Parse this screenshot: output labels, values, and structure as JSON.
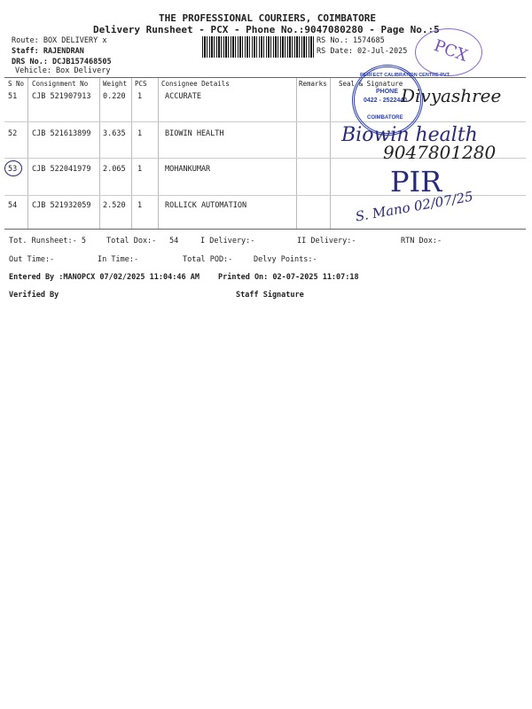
{
  "header": {
    "company": "THE PROFESSIONAL COURIERS, COIMBATORE",
    "subtitle": "Delivery Runsheet - PCX - Phone No.:9047080280 - Page No.:5",
    "route": "Route: BOX DELIVERY x",
    "staff": "Staff: RAJENDRAN",
    "drs": "DRS No.: DCJB157468505",
    "vehicle": "Vehicle: Box Delivery",
    "rs_no": "RS No.: 1574685",
    "rs_date": "RS Date: 02-Jul-2025"
  },
  "table": {
    "columns": [
      "S No",
      "Consignment No",
      "Weight",
      "PCS",
      "Consignee Details",
      "Remarks",
      "Seal & Signature"
    ],
    "rows": [
      {
        "sno": "51",
        "consignment": "CJB 521907913",
        "weight": "0.220",
        "pcs": "1",
        "consignee": "ACCURATE"
      },
      {
        "sno": "52",
        "consignment": "CJB 521613899",
        "weight": "3.635",
        "pcs": "1",
        "consignee": "BIOWIN HEALTH"
      },
      {
        "sno": "53",
        "consignment": "CJB 522041979",
        "weight": "2.065",
        "pcs": "1",
        "consignee": "MOHANKUMAR"
      },
      {
        "sno": "54",
        "consignment": "CJB 521932059",
        "weight": "2.520",
        "pcs": "1",
        "consignee": "ROLLICK AUTOMATION"
      }
    ]
  },
  "handwriting": {
    "sig1": "Divyashree",
    "sig2a": "Biowin health",
    "sig2b": "9047801280",
    "sig3": "PIR",
    "sig4": "S. Mano 02/07/25"
  },
  "stamps": {
    "pcx": "PCX",
    "company_top": "PERFECT CALIBRATION CENTRE PVT",
    "phone_label": "PHONE",
    "phone": "0422 - 2522440",
    "city": "COIMBATORE"
  },
  "footer": {
    "tot_runsheet": "Tot. Runsheet:- 5",
    "total_dox": "Total Dox:-",
    "total_dox_val": "54",
    "i_delivery": "I Delivery:-",
    "ii_delivery": "II Delivery:-",
    "rtn_dox": "RTN Dox:-",
    "out_time": "Out Time:-",
    "in_time": "In Time:-",
    "total_pod": "Total POD:-",
    "delvy_points": "Delvy Points:-",
    "entered_by": "Entered By :MANOPCX 07/02/2025 11:04:46 AM",
    "printed_on": "Printed On: 02-07-2025 11:07:18",
    "verified_by": "Verified By",
    "staff_signature": "Staff Signature"
  },
  "colors": {
    "ink": "#2a2a7a",
    "stamp_blue": "#2b3fae",
    "stamp_purple": "#7a4fc0"
  }
}
